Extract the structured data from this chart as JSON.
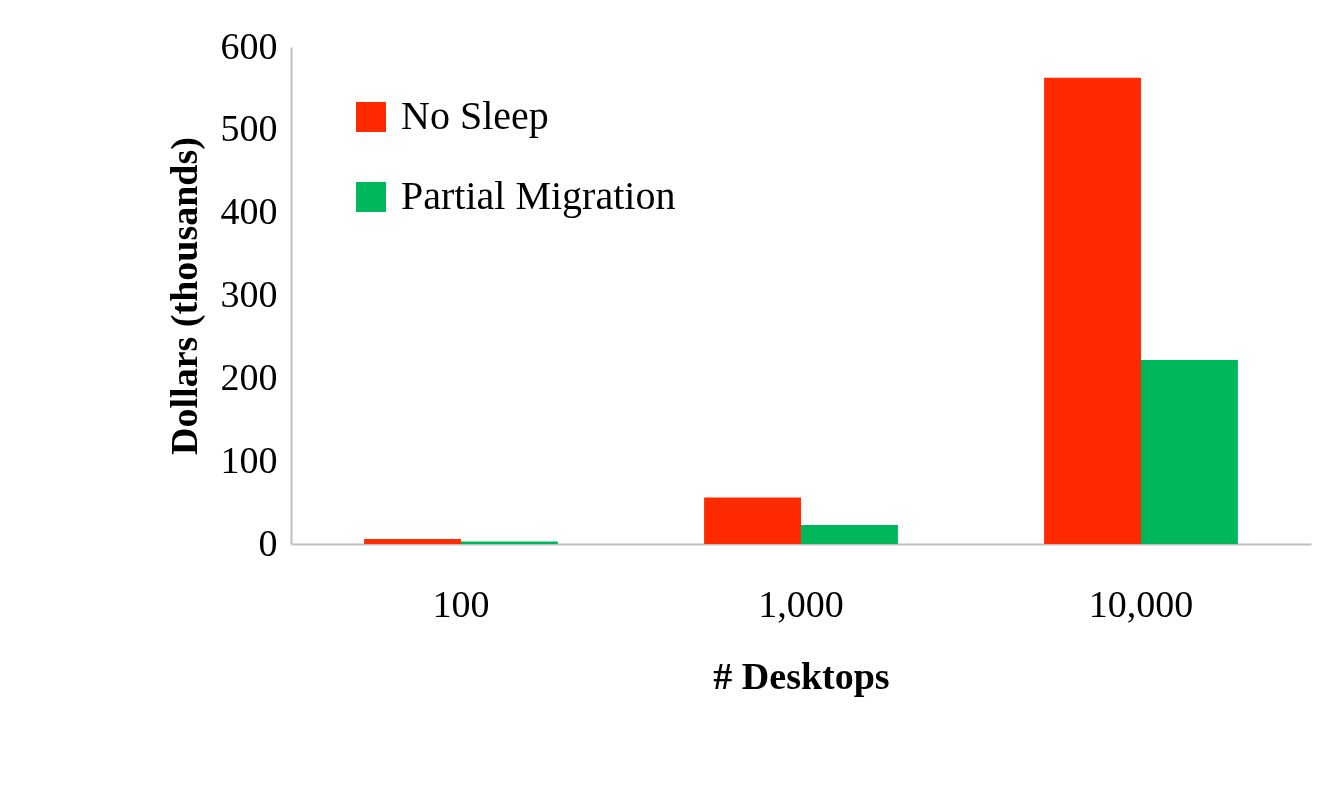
{
  "chart_data": {
    "type": "bar",
    "xlabel": "# Desktops",
    "ylabel": "Dollars (thousands)",
    "categories": [
      "100",
      "1,000",
      "10,000"
    ],
    "series": [
      {
        "name": "No Sleep",
        "color": "#ff2a00",
        "values": [
          6,
          56,
          563
        ]
      },
      {
        "name": "Partial Migration",
        "color": "#00b85c",
        "values": [
          3,
          23,
          222
        ]
      }
    ],
    "ylim": [
      0,
      600
    ],
    "yticks": [
      0,
      100,
      200,
      300,
      400,
      500,
      600
    ],
    "grid": false,
    "legend": "top left"
  }
}
